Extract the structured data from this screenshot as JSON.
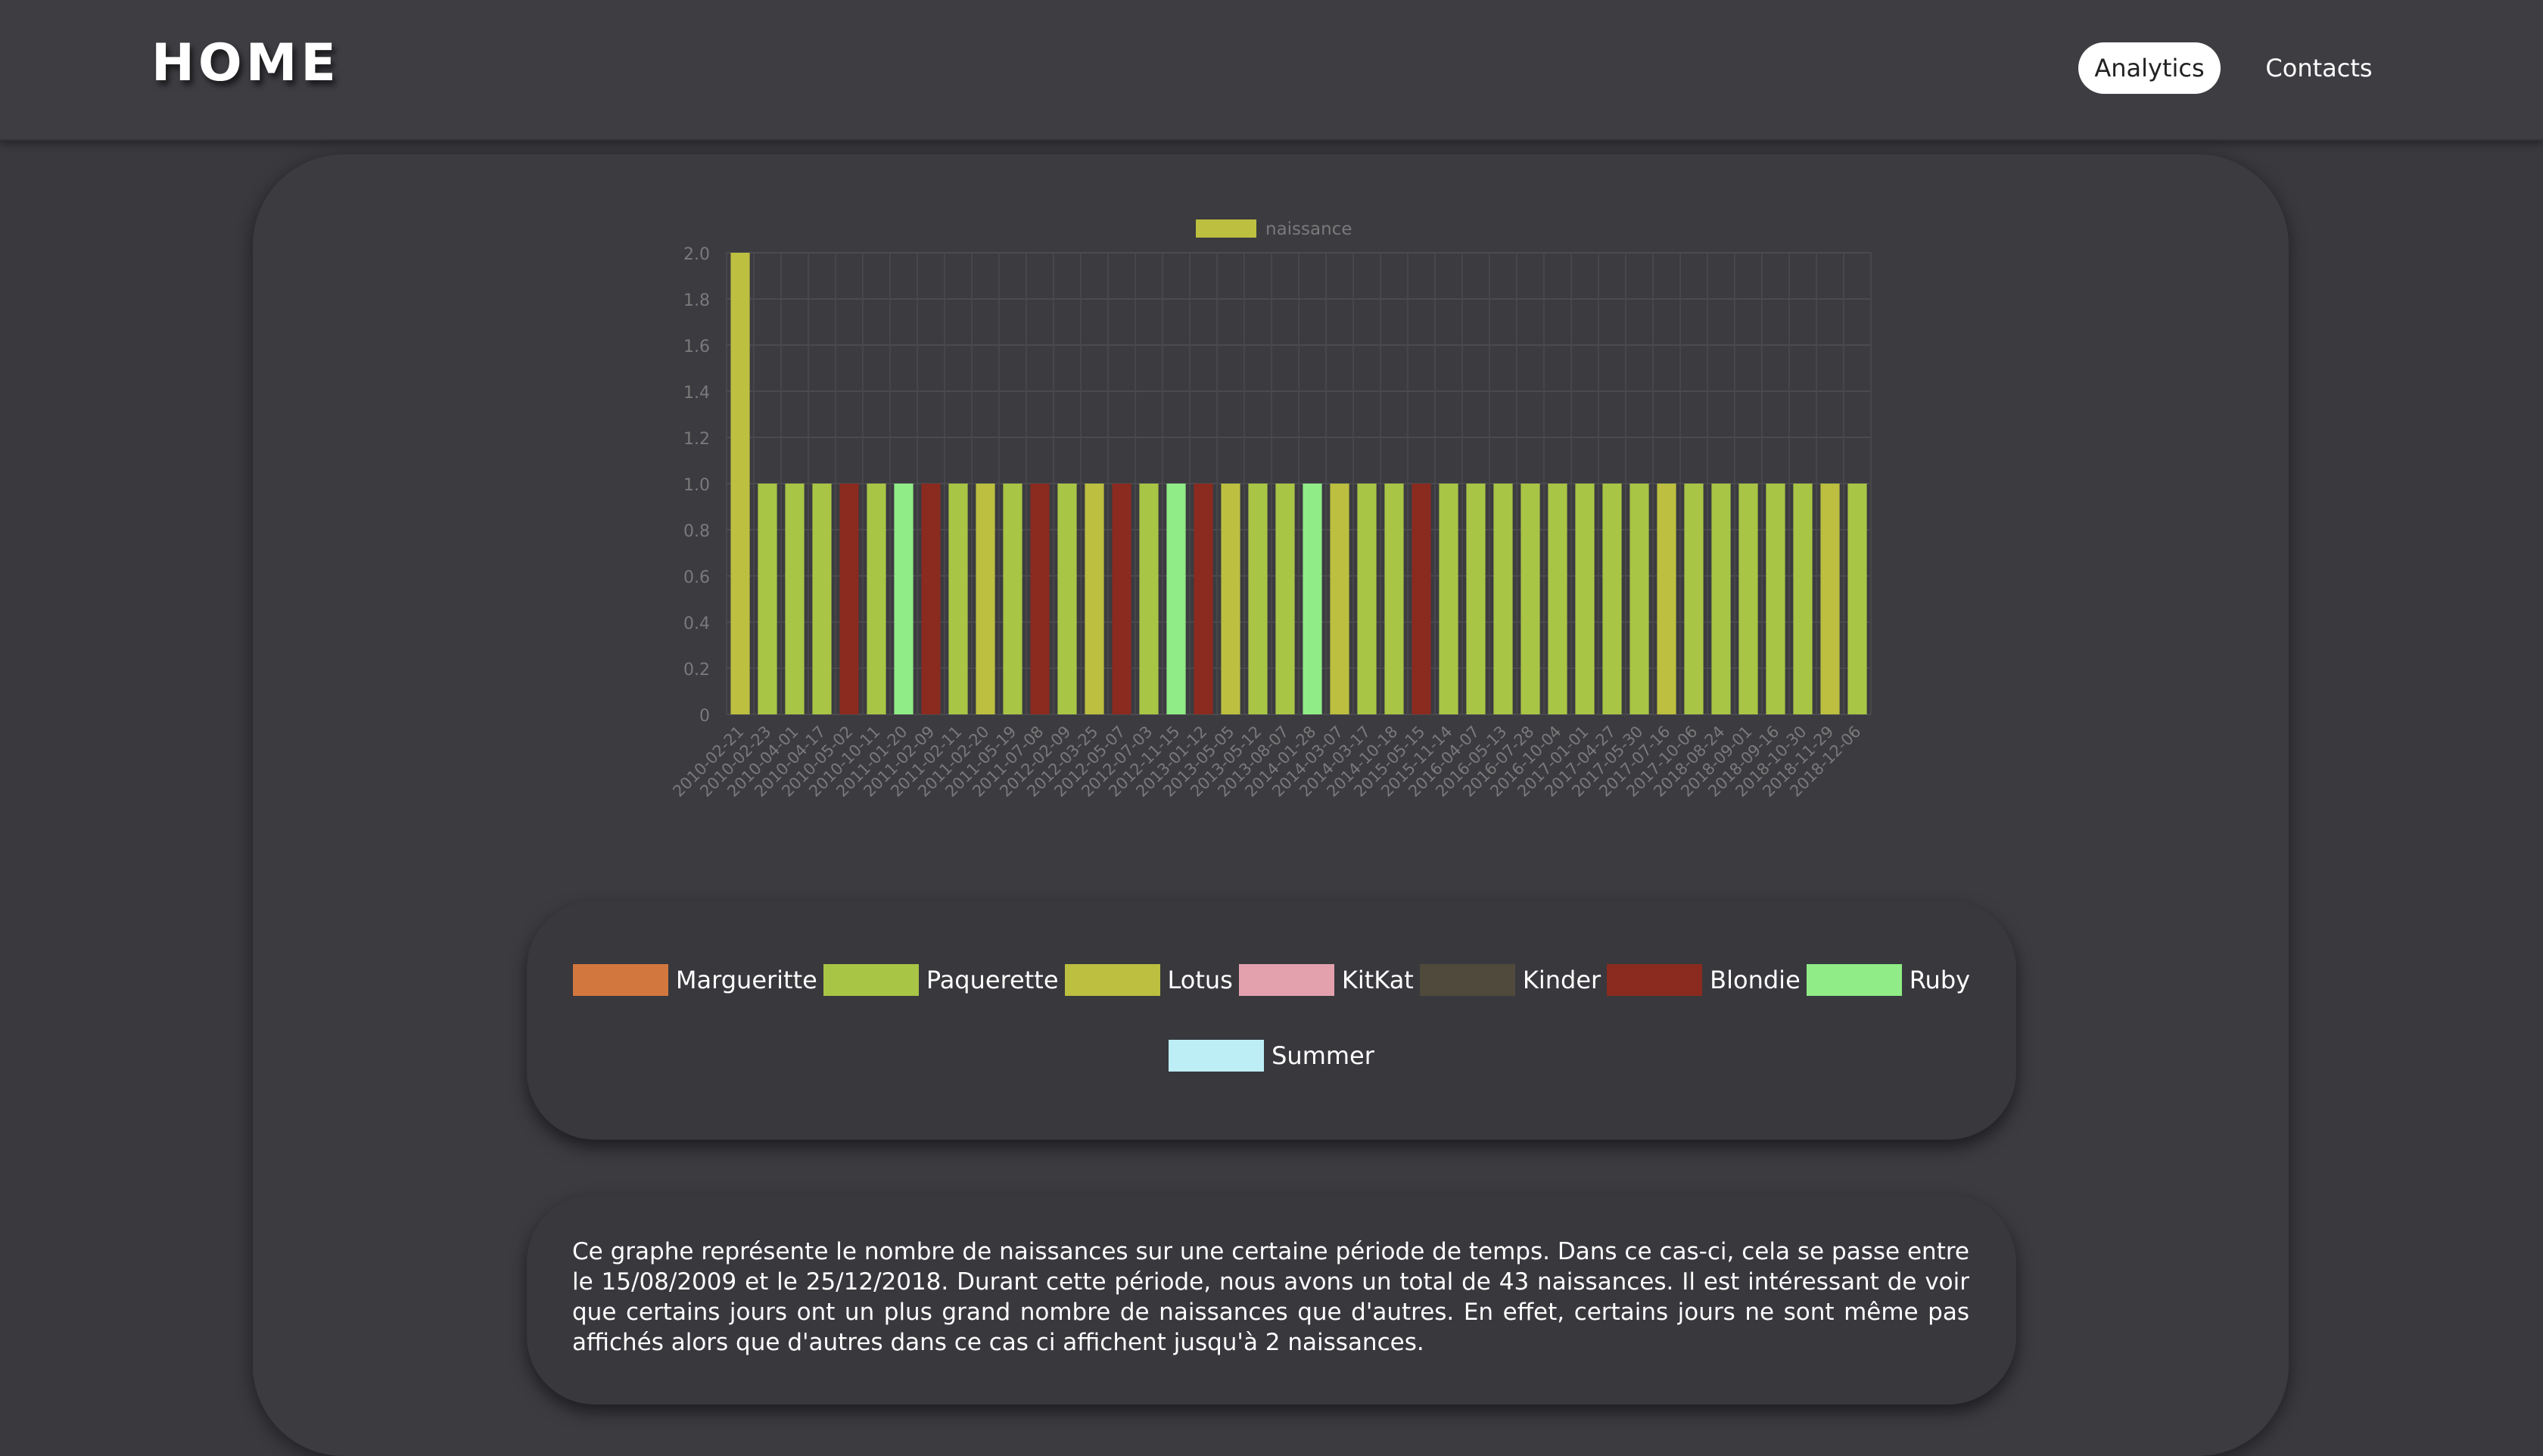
{
  "header": {
    "brand": "HOME",
    "nav": [
      {
        "label": "Analytics"
      },
      {
        "label": "Contacts"
      }
    ]
  },
  "chart_data": {
    "type": "bar",
    "legend": [
      "naissance"
    ],
    "legend_position": "top",
    "grid": true,
    "ylim": [
      0,
      2.0
    ],
    "yticks": [
      "0",
      "0.2",
      "0.4",
      "0.6",
      "0.8",
      "1.0",
      "1.2",
      "1.4",
      "1.6",
      "1.8",
      "2.0"
    ],
    "categories": [
      "2010-02-21",
      "2010-02-23",
      "2010-04-01",
      "2010-04-17",
      "2010-05-02",
      "2010-10-11",
      "2011-01-20",
      "2011-02-09",
      "2011-02-11",
      "2011-02-20",
      "2011-05-19",
      "2011-07-08",
      "2012-02-09",
      "2012-03-25",
      "2012-05-07",
      "2012-07-03",
      "2012-11-15",
      "2013-01-12",
      "2013-05-05",
      "2013-05-12",
      "2013-08-07",
      "2014-01-28",
      "2014-03-07",
      "2014-03-17",
      "2014-10-18",
      "2015-05-15",
      "2015-11-14",
      "2016-04-07",
      "2016-05-13",
      "2016-07-28",
      "2016-10-04",
      "2017-01-01",
      "2017-04-27",
      "2017-05-30",
      "2017-07-16",
      "2017-10-06",
      "2018-08-24",
      "2018-09-01",
      "2018-09-16",
      "2018-10-30",
      "2018-11-29",
      "2018-12-06"
    ],
    "bar_count": 42,
    "values": [
      2,
      1,
      1,
      1,
      1,
      1,
      1,
      1,
      1,
      1,
      1,
      1,
      1,
      1,
      1,
      1,
      1,
      1,
      1,
      1,
      1,
      1,
      1,
      1,
      1,
      1,
      1,
      1,
      1,
      1,
      1,
      1,
      1,
      1,
      1,
      1,
      1,
      1,
      1,
      1,
      1,
      1
    ],
    "bar_groups": [
      "Lotus",
      "Paquerette",
      "Paquerette",
      "Paquerette",
      "Blondie",
      "Paquerette",
      "Ruby",
      "Blondie",
      "Paquerette",
      "Lotus",
      "Paquerette",
      "Blondie",
      "Paquerette",
      "Lotus",
      "Blondie",
      "Paquerette",
      "Ruby",
      "Blondie",
      "Lotus",
      "Paquerette",
      "Paquerette",
      "Ruby",
      "Lotus",
      "Paquerette",
      "Paquerette",
      "Blondie",
      "Paquerette",
      "Paquerette",
      "Paquerette",
      "Paquerette",
      "Paquerette",
      "Paquerette",
      "Paquerette",
      "Paquerette",
      "Lotus",
      "Paquerette",
      "Paquerette",
      "Paquerette",
      "Paquerette",
      "Paquerette",
      "Lotus",
      "Paquerette"
    ],
    "legend_color": "#bcbf3f"
  },
  "legend_box": {
    "items": [
      {
        "label": "Margueritte",
        "color": "#d2773e"
      },
      {
        "label": "Paquerette",
        "color": "#a8c545"
      },
      {
        "label": "Lotus",
        "color": "#bcbf3f"
      },
      {
        "label": "KitKat",
        "color": "#e3a1ad"
      },
      {
        "label": "Kinder",
        "color": "#4f4a3b"
      },
      {
        "label": "Blondie",
        "color": "#8b2a1f"
      },
      {
        "label": "Ruby",
        "color": "#90ec86"
      },
      {
        "label": "Summer",
        "color": "#bdeef5"
      }
    ]
  },
  "description": "Ce graphe représente le nombre de naissances sur une certaine période de temps. Dans ce cas-ci, cela se passe entre le 15/08/2009 et le 25/12/2018. Durant cette période, nous avons un total de 43 naissances. Il est intéressant de voir que certains jours ont un plus grand nombre de naissances que d'autres. En effet, certains jours ne sont même pas affichés alors que d'autres dans ce cas ci affichent jusqu'à 2 naissances.",
  "colors": {
    "background": "#39393e",
    "grid": "#4a4a4f",
    "axis_text": "#7a7a7a"
  }
}
